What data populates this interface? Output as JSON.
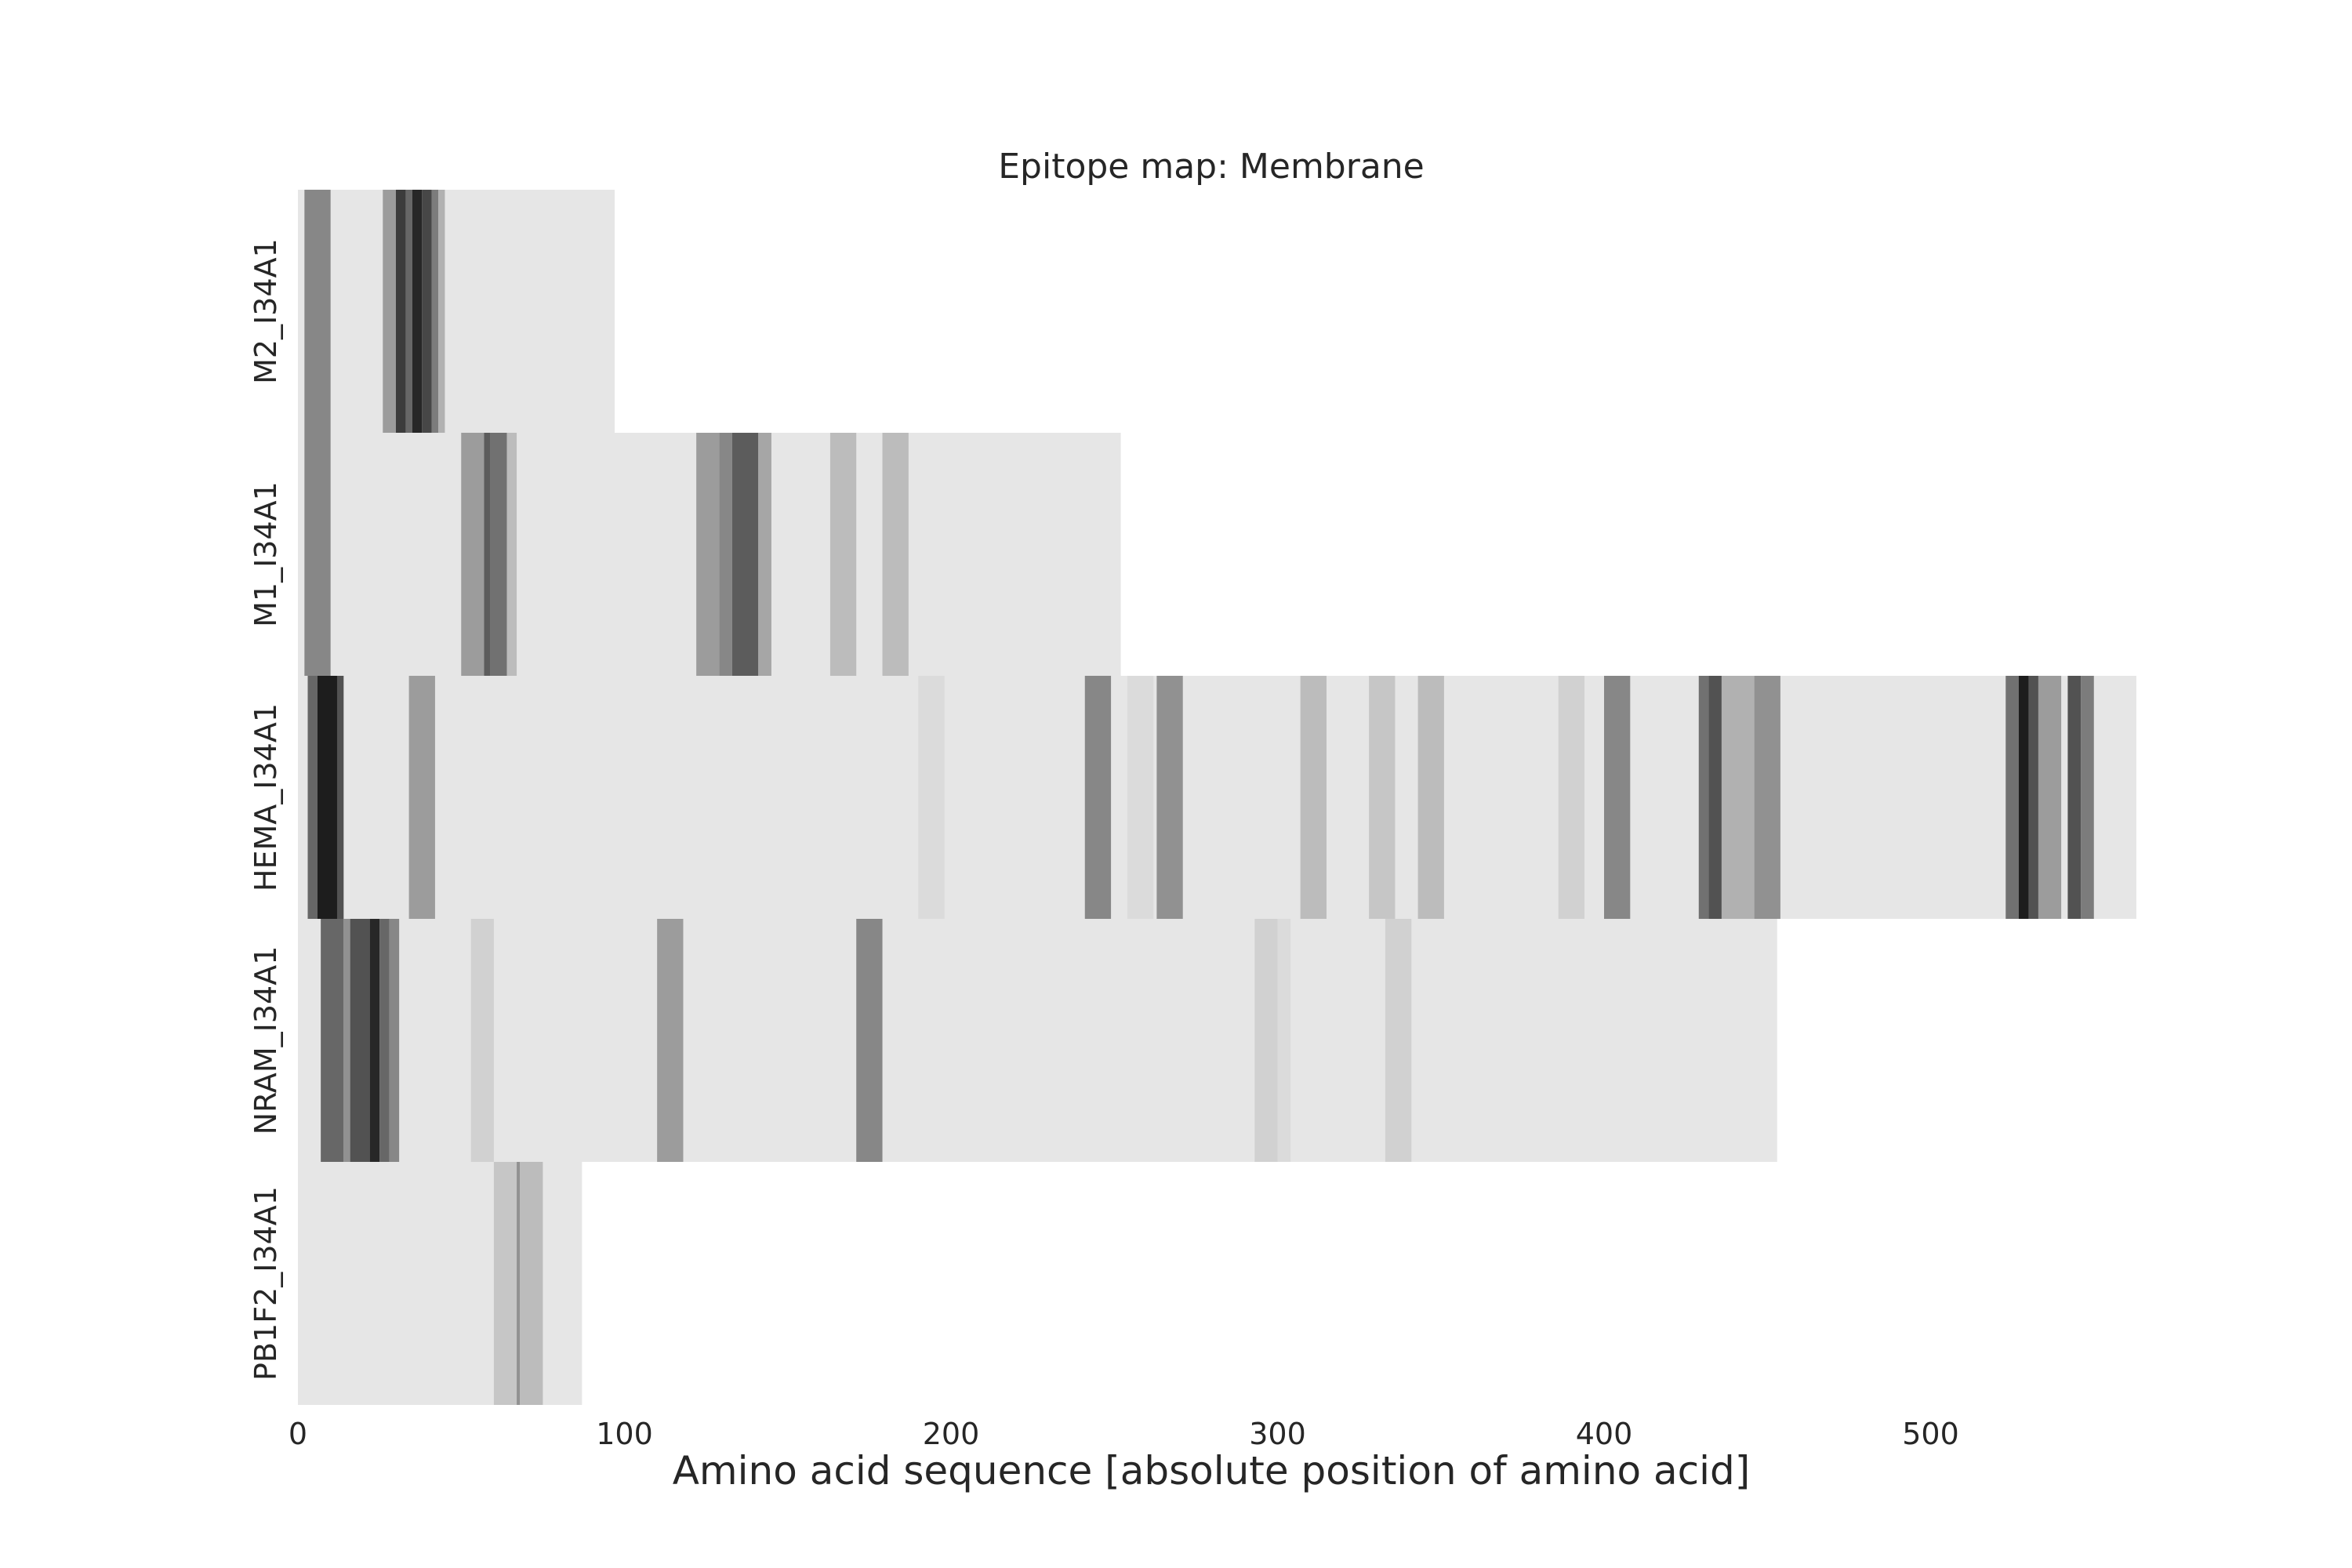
{
  "chart_data": {
    "type": "heatmap",
    "title": "Epitope map: Membrane",
    "xlabel": "Amino acid sequence [absolute position of amino acid]",
    "ylabel": "",
    "xlim": [
      0,
      563
    ],
    "xticks": [
      0,
      100,
      200,
      300,
      400,
      500
    ],
    "grid": false,
    "colors": {
      "background": "#e6e6e6",
      "page": "#ffffff",
      "text": "#262626"
    },
    "rows": [
      {
        "label": "M2_I34A1",
        "length": 97,
        "bands": [
          {
            "start": 2,
            "end": 10,
            "intensity": 0.45
          },
          {
            "start": 26,
            "end": 30,
            "intensity": 0.35
          },
          {
            "start": 30,
            "end": 33,
            "intensity": 0.8
          },
          {
            "start": 33,
            "end": 35,
            "intensity": 0.6
          },
          {
            "start": 35,
            "end": 38,
            "intensity": 0.9
          },
          {
            "start": 38,
            "end": 41,
            "intensity": 0.75
          },
          {
            "start": 41,
            "end": 43,
            "intensity": 0.5
          },
          {
            "start": 43,
            "end": 45,
            "intensity": 0.25
          }
        ]
      },
      {
        "label": "M1_I34A1",
        "length": 252,
        "bands": [
          {
            "start": 2,
            "end": 10,
            "intensity": 0.45
          },
          {
            "start": 50,
            "end": 57,
            "intensity": 0.35
          },
          {
            "start": 57,
            "end": 59,
            "intensity": 0.65
          },
          {
            "start": 59,
            "end": 64,
            "intensity": 0.55
          },
          {
            "start": 64,
            "end": 67,
            "intensity": 0.2
          },
          {
            "start": 122,
            "end": 129,
            "intensity": 0.35
          },
          {
            "start": 129,
            "end": 133,
            "intensity": 0.45
          },
          {
            "start": 133,
            "end": 141,
            "intensity": 0.65
          },
          {
            "start": 141,
            "end": 145,
            "intensity": 0.3
          },
          {
            "start": 163,
            "end": 171,
            "intensity": 0.2
          },
          {
            "start": 179,
            "end": 187,
            "intensity": 0.2
          }
        ]
      },
      {
        "label": "HEMA_I34A1",
        "length": 563,
        "bands": [
          {
            "start": 3,
            "end": 6,
            "intensity": 0.6
          },
          {
            "start": 6,
            "end": 12,
            "intensity": 0.95
          },
          {
            "start": 12,
            "end": 14,
            "intensity": 0.7
          },
          {
            "start": 34,
            "end": 42,
            "intensity": 0.35
          },
          {
            "start": 190,
            "end": 198,
            "intensity": 0.05
          },
          {
            "start": 241,
            "end": 249,
            "intensity": 0.45
          },
          {
            "start": 254,
            "end": 262,
            "intensity": 0.05
          },
          {
            "start": 263,
            "end": 271,
            "intensity": 0.4
          },
          {
            "start": 307,
            "end": 315,
            "intensity": 0.2
          },
          {
            "start": 328,
            "end": 336,
            "intensity": 0.15
          },
          {
            "start": 343,
            "end": 351,
            "intensity": 0.2
          },
          {
            "start": 386,
            "end": 394,
            "intensity": 0.1
          },
          {
            "start": 400,
            "end": 408,
            "intensity": 0.45
          },
          {
            "start": 429,
            "end": 432,
            "intensity": 0.55
          },
          {
            "start": 432,
            "end": 436,
            "intensity": 0.7
          },
          {
            "start": 436,
            "end": 446,
            "intensity": 0.25
          },
          {
            "start": 446,
            "end": 454,
            "intensity": 0.4
          },
          {
            "start": 523,
            "end": 527,
            "intensity": 0.55
          },
          {
            "start": 527,
            "end": 530,
            "intensity": 0.95
          },
          {
            "start": 530,
            "end": 533,
            "intensity": 0.7
          },
          {
            "start": 533,
            "end": 540,
            "intensity": 0.35
          },
          {
            "start": 542,
            "end": 546,
            "intensity": 0.7
          },
          {
            "start": 546,
            "end": 550,
            "intensity": 0.5
          }
        ]
      },
      {
        "label": "NRAM_I34A1",
        "length": 453,
        "bands": [
          {
            "start": 7,
            "end": 14,
            "intensity": 0.6
          },
          {
            "start": 14,
            "end": 16,
            "intensity": 0.4
          },
          {
            "start": 16,
            "end": 22,
            "intensity": 0.7
          },
          {
            "start": 22,
            "end": 25,
            "intensity": 0.9
          },
          {
            "start": 25,
            "end": 28,
            "intensity": 0.6
          },
          {
            "start": 28,
            "end": 31,
            "intensity": 0.45
          },
          {
            "start": 53,
            "end": 60,
            "intensity": 0.1
          },
          {
            "start": 110,
            "end": 118,
            "intensity": 0.35
          },
          {
            "start": 171,
            "end": 179,
            "intensity": 0.45
          },
          {
            "start": 293,
            "end": 300,
            "intensity": 0.1
          },
          {
            "start": 300,
            "end": 304,
            "intensity": 0.05
          },
          {
            "start": 333,
            "end": 341,
            "intensity": 0.1
          }
        ]
      },
      {
        "label": "PB1F2_I34A1",
        "length": 87,
        "bands": [
          {
            "start": 60,
            "end": 67,
            "intensity": 0.15
          },
          {
            "start": 67,
            "end": 68,
            "intensity": 0.4
          },
          {
            "start": 68,
            "end": 75,
            "intensity": 0.2
          }
        ]
      }
    ]
  }
}
